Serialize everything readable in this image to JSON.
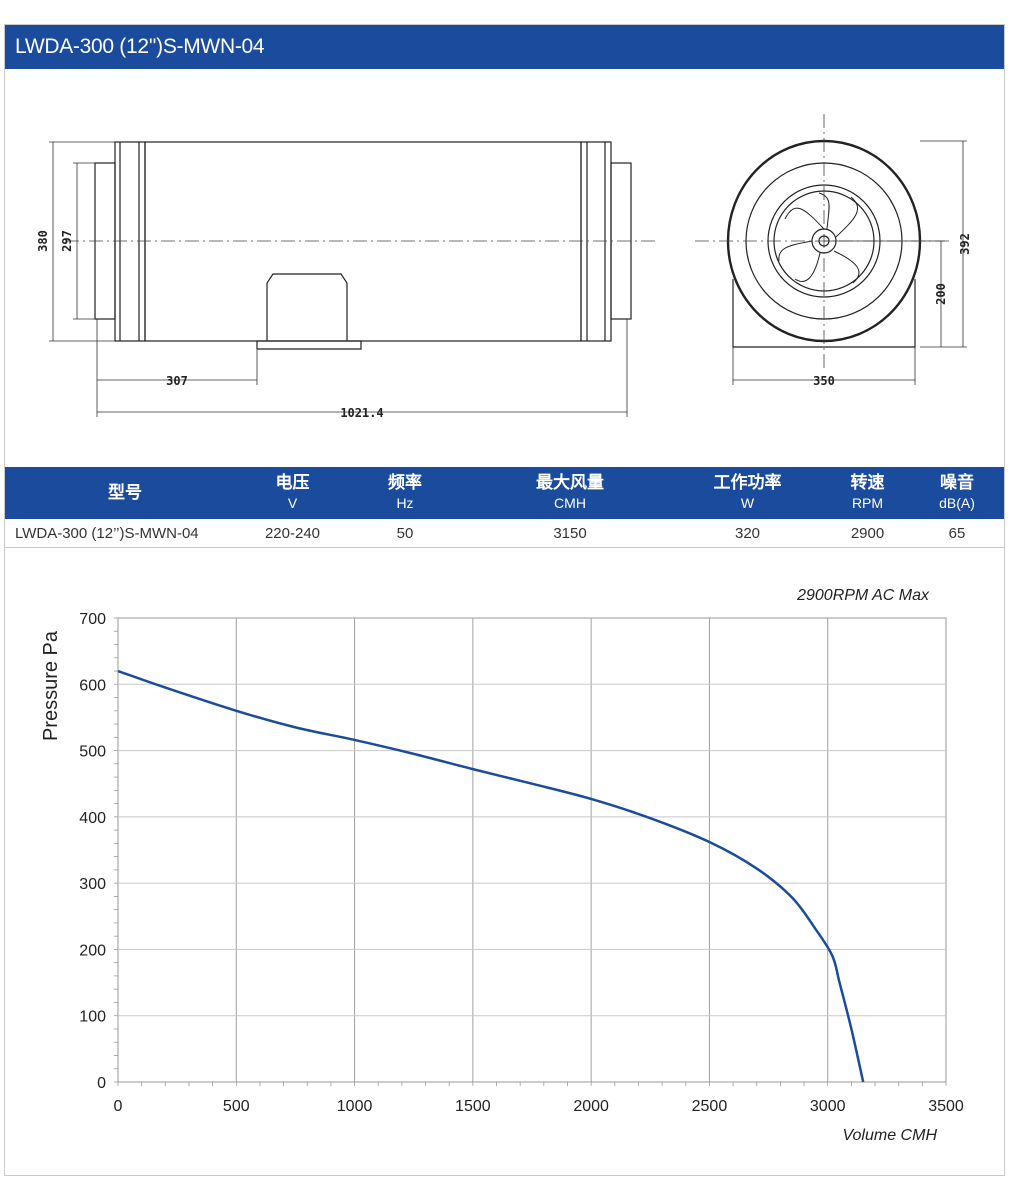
{
  "title": "LWDA-300 (12'')S-MWN-04",
  "colors": {
    "header_bg": "#1a4b9c",
    "curve": "#1a4b9c"
  },
  "drawing": {
    "side_view": {
      "dim_height_outer": "380",
      "dim_height_inner": "297",
      "dim_offset": "307",
      "dim_length": "1021.4"
    },
    "front_view": {
      "dim_height": "392",
      "dim_base_height": "200",
      "dim_width": "350"
    }
  },
  "table": {
    "headers": [
      {
        "label": "型号",
        "unit": ""
      },
      {
        "label": "电压",
        "unit": "V"
      },
      {
        "label": "频率",
        "unit": "Hz"
      },
      {
        "label": "最大风量",
        "unit": "CMH"
      },
      {
        "label": "工作功率",
        "unit": "W"
      },
      {
        "label": "转速",
        "unit": "RPM"
      },
      {
        "label": "噪音",
        "unit": "dB(A)"
      }
    ],
    "rows": [
      [
        "LWDA-300 (12’’)S-MWN-04",
        "220-240",
        "50",
        "3150",
        "320",
        "2900",
        "65"
      ]
    ]
  },
  "chart_data": {
    "type": "line",
    "title": "2900RPM AC Max",
    "xlabel": "Volume CMH",
    "ylabel": "Pressure  Pa",
    "xlim": [
      0,
      3500
    ],
    "ylim": [
      0,
      700
    ],
    "x_ticks": [
      "0",
      "500",
      "1000",
      "1500",
      "2000",
      "2500",
      "3000",
      "3500"
    ],
    "y_ticks": [
      "0",
      "100",
      "200",
      "300",
      "400",
      "500",
      "600",
      "700"
    ],
    "grid": true,
    "series": [
      {
        "x": [
          0,
          200,
          500,
          750,
          1000,
          1250,
          1500,
          1750,
          2000,
          2250,
          2500,
          2700,
          2850,
          2950,
          3020,
          3050,
          3100,
          3150
        ],
        "y": [
          620,
          595,
          560,
          535,
          516,
          495,
          472,
          450,
          427,
          398,
          362,
          322,
          278,
          230,
          190,
          150,
          80,
          0
        ]
      }
    ]
  }
}
